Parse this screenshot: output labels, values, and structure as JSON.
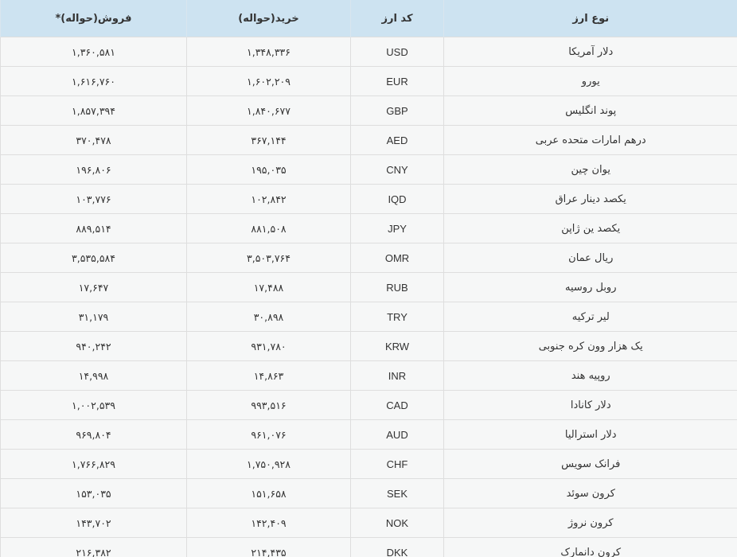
{
  "table": {
    "headers": [
      "نوع ارز",
      "کد ارز",
      "خرید(حواله)",
      "فروش(حواله)*"
    ],
    "rows": [
      {
        "name": "دلار آمریکا",
        "code": "USD",
        "buy": "۱,۳۴۸,۳۳۶",
        "sell": "۱,۳۶۰,۵۸۱"
      },
      {
        "name": "یورو",
        "code": "EUR",
        "buy": "۱,۶۰۲,۲۰۹",
        "sell": "۱,۶۱۶,۷۶۰"
      },
      {
        "name": "پوند انگلیس",
        "code": "GBP",
        "buy": "۱,۸۴۰,۶۷۷",
        "sell": "۱,۸۵۷,۳۹۴"
      },
      {
        "name": "درهم امارات متحده عربی",
        "code": "AED",
        "buy": "۳۶۷,۱۴۴",
        "sell": "۳۷۰,۴۷۸"
      },
      {
        "name": "یوان چین",
        "code": "CNY",
        "buy": "۱۹۵,۰۳۵",
        "sell": "۱۹۶,۸۰۶"
      },
      {
        "name": "یکصد دینار عراق",
        "code": "IQD",
        "buy": "۱۰۲,۸۴۲",
        "sell": "۱۰۳,۷۷۶"
      },
      {
        "name": "یکصد ین ژاپن",
        "code": "JPY",
        "buy": "۸۸۱,۵۰۸",
        "sell": "۸۸۹,۵۱۴"
      },
      {
        "name": "ریال عمان",
        "code": "OMR",
        "buy": "۳,۵۰۳,۷۶۴",
        "sell": "۳,۵۳۵,۵۸۴"
      },
      {
        "name": "روبل روسیه",
        "code": "RUB",
        "buy": "۱۷,۴۸۸",
        "sell": "۱۷,۶۴۷"
      },
      {
        "name": "لیر ترکیه",
        "code": "TRY",
        "buy": "۳۰,۸۹۸",
        "sell": "۳۱,۱۷۹"
      },
      {
        "name": "یک هزار وون کره جنوبی",
        "code": "KRW",
        "buy": "۹۳۱,۷۸۰",
        "sell": "۹۴۰,۲۴۲"
      },
      {
        "name": "روپیه هند",
        "code": "INR",
        "buy": "۱۴,۸۶۳",
        "sell": "۱۴,۹۹۸"
      },
      {
        "name": "دلار کانادا",
        "code": "CAD",
        "buy": "۹۹۳,۵۱۶",
        "sell": "۱,۰۰۲,۵۳۹"
      },
      {
        "name": "دلار استرالیا",
        "code": "AUD",
        "buy": "۹۶۱,۰۷۶",
        "sell": "۹۶۹,۸۰۴"
      },
      {
        "name": "فرانک سویس",
        "code": "CHF",
        "buy": "۱,۷۵۰,۹۲۸",
        "sell": "۱,۷۶۶,۸۲۹"
      },
      {
        "name": "کرون سوئد",
        "code": "SEK",
        "buy": "۱۵۱,۶۵۸",
        "sell": "۱۵۳,۰۳۵"
      },
      {
        "name": "کرون نروژ",
        "code": "NOK",
        "buy": "۱۴۲,۴۰۹",
        "sell": "۱۴۳,۷۰۲"
      },
      {
        "name": "کرون دانمارک",
        "code": "DKK",
        "buy": "۲۱۴,۴۳۵",
        "sell": "۲۱۶,۳۸۲"
      }
    ]
  }
}
